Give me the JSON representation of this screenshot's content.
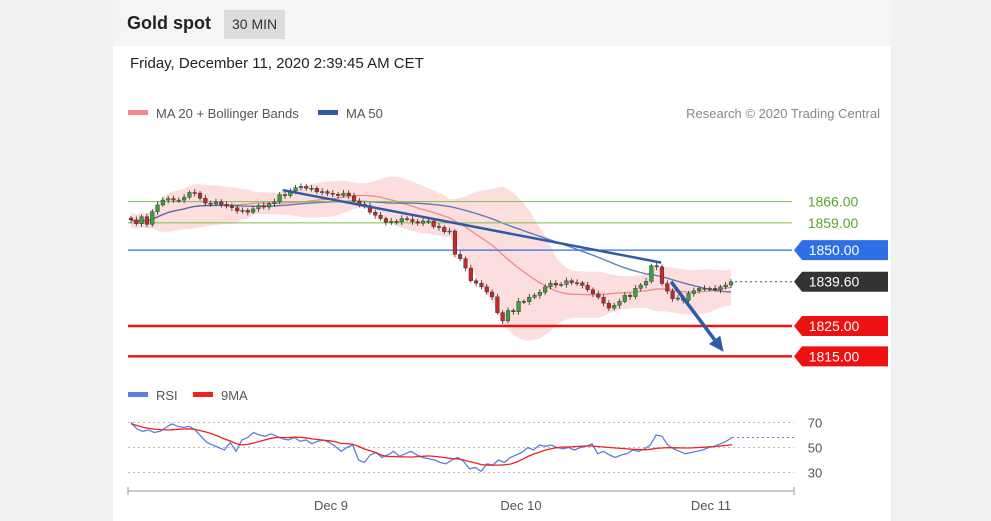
{
  "header": {
    "title": "Gold spot",
    "timeframe": "30 MIN"
  },
  "datetime": "Friday, December 11, 2020 2:39:45 AM CET",
  "colors": {
    "ma20": "#f08a8a",
    "ma50": "#2e5aa8",
    "bands": "#fbd3d3",
    "support": "#ee1111",
    "pivot": "#2f6fe6",
    "resistance": "#7cc04a",
    "price_box": "#333333",
    "rsi": "#5b7fe0",
    "rsi_ma": "#ee2222"
  },
  "chart_data": [
    {
      "type": "candlestick",
      "legend": [
        {
          "name": "MA 20 + Bollinger Bands",
          "color": "#f08a8a"
        },
        {
          "name": "MA 50",
          "color": "#2e5aa8"
        }
      ],
      "credit": "Research © 2020 Trading Central",
      "ylim": [
        1810.5,
        1886.3
      ],
      "levels": [
        {
          "value": 1866.0,
          "label": "1866.00",
          "kind": "resistance"
        },
        {
          "value": 1859.0,
          "label": "1859.00",
          "kind": "resistance"
        },
        {
          "value": 1850.0,
          "label": "1850.00",
          "kind": "pivot"
        },
        {
          "value": 1839.6,
          "label": "1839.60",
          "kind": "current"
        },
        {
          "value": 1825.0,
          "label": "1825.00",
          "kind": "support"
        },
        {
          "value": 1815.0,
          "label": "1815.00",
          "kind": "support"
        }
      ],
      "x_ticks": [
        "Dec 9",
        "Dec 10",
        "Dec 11"
      ],
      "close_series": [
        1860,
        1858.7,
        1861,
        1858.5,
        1862.7,
        1864.9,
        1866.5,
        1867,
        1866.5,
        1866.5,
        1867.4,
        1869,
        1868.8,
        1867.1,
        1865.5,
        1865.3,
        1865.9,
        1865.1,
        1864.5,
        1864,
        1862.9,
        1863.1,
        1862.5,
        1863.6,
        1864.7,
        1864.2,
        1865.3,
        1865.9,
        1868.3,
        1868,
        1869.5,
        1870.6,
        1871,
        1870.4,
        1870.4,
        1869.2,
        1869.3,
        1868.7,
        1868.4,
        1868,
        1868.8,
        1867.9,
        1866.2,
        1865.1,
        1864.7,
        1862.5,
        1861.5,
        1860.4,
        1859.2,
        1859.5,
        1859.3,
        1860.4,
        1860.1,
        1859.4,
        1858.9,
        1859.6,
        1859.6,
        1857.8,
        1857.5,
        1856.1,
        1856.3,
        1848.6,
        1847.2,
        1844.1,
        1839.9,
        1839.1,
        1837.9,
        1836.2,
        1834.6,
        1829.4,
        1826.7,
        1830.1,
        1829.7,
        1833.1,
        1833,
        1834.5,
        1835.1,
        1836.1,
        1837.9,
        1839.1,
        1838.5,
        1838.7,
        1839.9,
        1839.3,
        1839.2,
        1838.4,
        1837,
        1835.6,
        1834.5,
        1832.5,
        1830.9,
        1831.8,
        1833.1,
        1835.1,
        1834.7,
        1837.4,
        1838.5,
        1839.7,
        1844.9,
        1844.5,
        1839,
        1836.5,
        1834,
        1834.2,
        1833.5,
        1835.7,
        1836.6,
        1837.4,
        1837.4,
        1837.4,
        1836.9,
        1837.9,
        1838.5,
        1839.6
      ],
      "trendline": [
        {
          "x": 0.233,
          "y": 1869.8
        },
        {
          "x": 0.803,
          "y": 1845.9
        }
      ],
      "forecast_arrow": [
        {
          "x": 0.818,
          "y": 1839.6
        },
        {
          "x": 0.897,
          "y": 1816.5
        }
      ]
    },
    {
      "type": "line",
      "legend": [
        {
          "name": "RSI",
          "color": "#5b7fe0"
        },
        {
          "name": "9MA",
          "color": "#ee2222"
        }
      ],
      "ylim": [
        20,
        80
      ],
      "y_ticks": [
        70,
        50,
        30
      ],
      "rsi": [
        70,
        65,
        63,
        64,
        62,
        63,
        66,
        69,
        67,
        66,
        67,
        64,
        59,
        54,
        52,
        50,
        48,
        54,
        47,
        56,
        58,
        62,
        60,
        59,
        61,
        59,
        57,
        56,
        58,
        55,
        56,
        53,
        55,
        56,
        54,
        51,
        47,
        50,
        52,
        40,
        38,
        44,
        46,
        42,
        44,
        47,
        43,
        45,
        47,
        44,
        42,
        41,
        40,
        38,
        37,
        40,
        42,
        39,
        33,
        34,
        31,
        37,
        36,
        40,
        38,
        42,
        44,
        46,
        50,
        48,
        52,
        51,
        52,
        50,
        49,
        50,
        48,
        50,
        51,
        53,
        45,
        47,
        44,
        42,
        44,
        45,
        48,
        47,
        49,
        52,
        60,
        59,
        52,
        49,
        47,
        45,
        46,
        47,
        48,
        50,
        51,
        53,
        55,
        58
      ],
      "ma": [
        69,
        67.6,
        66.3,
        65.3,
        64.7,
        64.3,
        64.1,
        64.2,
        64.6,
        64.8,
        65,
        64.4,
        63.4,
        62.2,
        60.7,
        58.9,
        56.8,
        55.3,
        53.1,
        52.1,
        52.5,
        53.6,
        54.8,
        56.1,
        57.4,
        58,
        58,
        57.9,
        58.3,
        58.1,
        57.8,
        56.9,
        56.4,
        55.9,
        55.4,
        54.7,
        53.3,
        53.1,
        52.6,
        50.9,
        48.8,
        47.4,
        45.9,
        43.8,
        42.8,
        42.8,
        42.5,
        42.5,
        42.3,
        42.7,
        43,
        43.3,
        42.9,
        42.4,
        41.7,
        41.1,
        40.9,
        40,
        38.7,
        37.7,
        36.3,
        35.9,
        35.9,
        35.9,
        36.2,
        36.7,
        38.2,
        40.3,
        42.8,
        44.7,
        46.3,
        47.9,
        49,
        49.9,
        50.4,
        50.4,
        50.7,
        51,
        51.2,
        51.2,
        50.8,
        50.4,
        50,
        49.6,
        49.3,
        48.9,
        48.6,
        48.4,
        48.2,
        48.6,
        49.4,
        49.6,
        49.9,
        49.8,
        49.7,
        49.6,
        49.7,
        49.9,
        50.2,
        50.5,
        50.8,
        51.2,
        51.7,
        52.3
      ]
    }
  ]
}
